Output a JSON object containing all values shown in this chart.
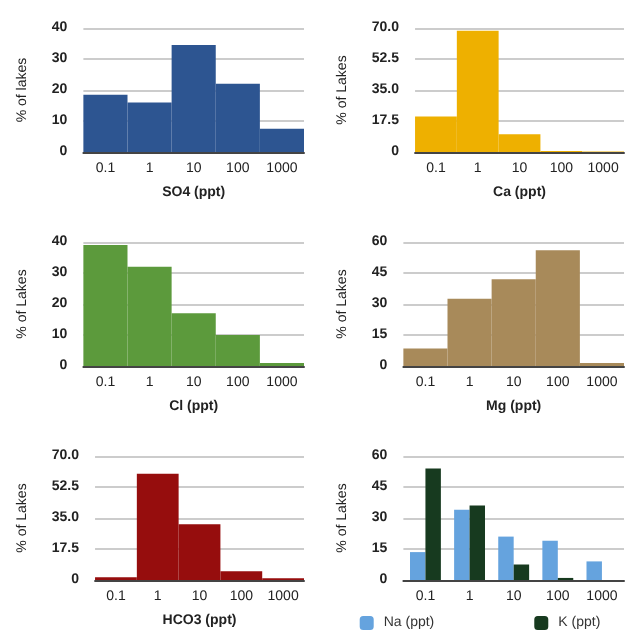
{
  "chart_data": [
    {
      "type": "bar",
      "xlabel": "SO4 (ppt)",
      "ylabel": "% of lakes",
      "categories": [
        "0.1",
        "1",
        "10",
        "100",
        "1000"
      ],
      "series": [
        {
          "color": "#2d5591",
          "values": [
            18.5,
            16,
            34.5,
            22,
            7.5
          ]
        }
      ],
      "ylim": [
        0,
        40
      ],
      "yticks": [
        0,
        10,
        20,
        30,
        40
      ],
      "grid": "y",
      "legend": false
    },
    {
      "type": "bar",
      "xlabel": "Ca (ppt)",
      "ylabel": "% of Lakes",
      "categories": [
        "0.1",
        "1",
        "10",
        "100",
        "1000"
      ],
      "series": [
        {
          "color": "#eeb000",
          "values": [
            20,
            68.5,
            10,
            0.5,
            0.3
          ]
        }
      ],
      "ylim": [
        0,
        70
      ],
      "yticks": [
        0,
        {
          "value": 17.5,
          "label": "17.5"
        },
        {
          "value": 35,
          "label": "35.0"
        },
        {
          "value": 52.5,
          "label": "52.5"
        },
        {
          "value": 70,
          "label": "70.0"
        }
      ],
      "grid": "y",
      "legend": false
    },
    {
      "type": "bar",
      "xlabel": "Cl (ppt)",
      "ylabel": "% of Lakes",
      "categories": [
        "0.1",
        "1",
        "10",
        "100",
        "1000"
      ],
      "series": [
        {
          "color": "#5c9a3c",
          "values": [
            39,
            32,
            17,
            10,
            1
          ]
        }
      ],
      "ylim": [
        0,
        40
      ],
      "yticks": [
        0,
        10,
        20,
        30,
        40
      ],
      "grid": "y",
      "legend": false
    },
    {
      "type": "bar",
      "xlabel": "Mg (ppt)",
      "ylabel": "% of Lakes",
      "categories": [
        "0.1",
        "1",
        "10",
        "100",
        "1000"
      ],
      "series": [
        {
          "color": "#a88a5a",
          "values": [
            8.5,
            32.5,
            42,
            56,
            1.5
          ]
        }
      ],
      "ylim": [
        0,
        60
      ],
      "yticks": [
        0,
        15,
        30,
        45,
        60
      ],
      "grid": "y",
      "legend": false
    },
    {
      "type": "bar",
      "xlabel": "HCO3 (ppt)",
      "ylabel": "% of Lakes",
      "categories": [
        "0.1",
        "1",
        "10",
        "100",
        "1000"
      ],
      "series": [
        {
          "color": "#960d0d",
          "values": [
            1.5,
            60,
            31.5,
            5,
            1
          ]
        }
      ],
      "ylim": [
        0,
        70
      ],
      "yticks": [
        0,
        {
          "value": 17.5,
          "label": "17.5"
        },
        {
          "value": 35,
          "label": "35.0"
        },
        {
          "value": 52.5,
          "label": "52.5"
        },
        {
          "value": 70,
          "label": "70.0"
        }
      ],
      "grid": "y",
      "legend": false
    },
    {
      "type": "bar",
      "ylabel": "% of Lakes",
      "categories": [
        "0.1",
        "1",
        "10",
        "100",
        "1000"
      ],
      "series": [
        {
          "name": "Na (ppt)",
          "color": "#65a3de",
          "values": [
            13.5,
            34,
            21,
            19,
            9
          ]
        },
        {
          "name": "K (ppt)",
          "color": "#173a1f",
          "values": [
            54,
            36,
            7.5,
            1,
            0
          ]
        }
      ],
      "ylim": [
        0,
        60
      ],
      "yticks": [
        0,
        15,
        30,
        45,
        60
      ],
      "grid": "y",
      "legend": "bottom"
    }
  ]
}
